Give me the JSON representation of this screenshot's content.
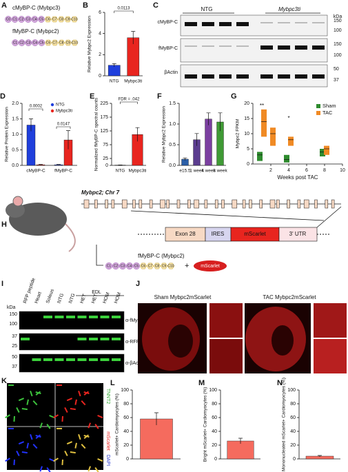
{
  "panel_a": {
    "panel": "A",
    "rows": [
      {
        "label": "cMyBP-C (Mybpc3)",
        "domains": [
          "C0",
          "C1",
          "C2",
          "C3",
          "C4",
          "C5",
          "C6",
          "C7",
          "C8",
          "C9",
          "C10"
        ]
      },
      {
        "label": "fMyBP-C (Mybpc2)",
        "domains": [
          "C1",
          "C2",
          "C3",
          "C4",
          "C5",
          "C6",
          "C7",
          "C8",
          "C9",
          "C10"
        ]
      }
    ]
  },
  "panel_c": {
    "panel": "C",
    "groups": [
      "NTG",
      "Mybpc3ti"
    ],
    "unit": "kDa",
    "markers": [
      "150",
      "100",
      "150",
      "100",
      "50",
      "37"
    ],
    "proteins": [
      "cMyBP-C",
      "fMyBP-C",
      "βActin"
    ]
  },
  "panel_h": {
    "panel": "H",
    "gene": "Mybpc2; Chr 7",
    "construct": [
      "Exon 28",
      "IRES",
      "mScarlet",
      "3' UTR"
    ],
    "product": {
      "label": "fMyBP-C (Mybpc2)",
      "domains": [
        "C1",
        "C2",
        "C3",
        "C4",
        "C5",
        "C6",
        "C7",
        "C8",
        "C9",
        "C10"
      ]
    },
    "plus": "+",
    "reporter": "mScarlet"
  },
  "panel_i": {
    "panel": "I",
    "lanes": [
      "RFP peptide",
      "Heart",
      "Soleus",
      "NTG",
      "NTG",
      "HET",
      "HET",
      "HOM",
      "HOM"
    ],
    "group": "EDL",
    "unit": "kDa",
    "markers": [
      "150",
      "100",
      "37",
      "25",
      "50",
      "37"
    ],
    "antibodies": [
      "α-fMyBP-C",
      "α-RFP",
      "α-βActin"
    ]
  },
  "panel_j": {
    "panel": "J",
    "titles": [
      "Sham Mybpc2mScarlet",
      "TAC Mybpc2mScarlet"
    ]
  },
  "panel_k": {
    "panel": "K",
    "channels": [
      "TNNT2",
      "mScarlet",
      "DAPI"
    ]
  },
  "chart_data": [
    {
      "panel": "B",
      "type": "bar",
      "ylabel": "Relative Mybpc2 Expression",
      "categories": [
        "NTG",
        "Mybpc3ti"
      ],
      "values": [
        1.0,
        3.6
      ],
      "errors": [
        0.15,
        0.6
      ],
      "colors": [
        "#1f3fdc",
        "#e8251f"
      ],
      "ylim": [
        0,
        6
      ],
      "yticks": [
        0,
        2,
        4,
        6
      ],
      "annotations": [
        "0.0113"
      ]
    },
    {
      "panel": "D",
      "type": "bar",
      "ylabel": "Relative Protein Expression",
      "categories": [
        "cMyBP-C",
        "fMyBP-C"
      ],
      "series": [
        {
          "name": "NTG",
          "color": "#1f3fdc",
          "values": [
            1.3,
            0.02
          ],
          "errors": [
            0.2,
            0.01
          ]
        },
        {
          "name": "Mybpc3ti",
          "color": "#e8251f",
          "values": [
            0.02,
            0.82
          ],
          "errors": [
            0.01,
            0.3
          ]
        }
      ],
      "ylim": [
        0,
        2
      ],
      "yticks": [
        {
          "value": 0,
          "label": "0.0"
        },
        {
          "value": 0.5,
          "label": "0.5"
        },
        {
          "value": 1,
          "label": "1.0"
        },
        {
          "value": 1.5,
          "label": "1.5"
        },
        {
          "value": 2,
          "label": "2.0"
        }
      ],
      "annotations": [
        "0.0002",
        "0.0147"
      ]
    },
    {
      "panel": "E",
      "type": "bar",
      "ylabel": "Normalized fMyBP-C spectral counts",
      "categories": [
        "NTG",
        "Mybpc3ti"
      ],
      "values": [
        1,
        112
      ],
      "errors": [
        0.5,
        25
      ],
      "colors": [
        "#1f3fdc",
        "#e8251f"
      ],
      "ylim": [
        0,
        225
      ],
      "yticks": [
        0,
        25,
        75,
        125,
        175,
        225
      ],
      "annotations": [
        "FDR = .042"
      ]
    },
    {
      "panel": "F",
      "type": "bar",
      "ylabel": "Relative Mybpc2 Expression",
      "categories": [
        "e15.5",
        "1 week",
        "4 week",
        "8 week"
      ],
      "values": [
        0.15,
        0.62,
        1.12,
        1.05
      ],
      "errors": [
        0.03,
        0.15,
        0.15,
        0.22
      ],
      "colors": [
        "#2b5fa8",
        "#5b3d8f",
        "#7b3fa0",
        "#3f9a35"
      ],
      "ylim": [
        0,
        1.5
      ],
      "yticks": [
        {
          "value": 0,
          "label": "0.0"
        },
        {
          "value": 0.5,
          "label": "0.5"
        },
        {
          "value": 1,
          "label": "1.0"
        },
        {
          "value": 1.5,
          "label": "1.5"
        }
      ]
    },
    {
      "panel": "G",
      "type": "box",
      "ylabel": "Mybpc2 FPKM",
      "xlabel": "Weeks post TAC",
      "series": [
        {
          "name": "Sham",
          "color": "#2e8b2e",
          "x": [
            1,
            4,
            8
          ],
          "q1": [
            1,
            0.5,
            2.5
          ],
          "median": [
            3,
            1.5,
            4
          ],
          "q3": [
            4,
            3,
            5
          ]
        },
        {
          "name": "TAC",
          "color": "#f08a24",
          "x": [
            1,
            2,
            4,
            8
          ],
          "q1": [
            9,
            6,
            6,
            3
          ],
          "median": [
            14,
            10,
            8,
            5
          ],
          "q3": [
            18,
            12,
            9,
            6
          ]
        }
      ],
      "xlim": [
        0,
        10
      ],
      "xticks": [
        2,
        4,
        6,
        8,
        10
      ],
      "ylim": [
        0,
        20
      ],
      "yticks": [
        0,
        5,
        10,
        15,
        20
      ],
      "legend": "upper right",
      "annotations": [
        {
          "text": "**",
          "x": 1
        },
        {
          "text": "*",
          "x": 4
        }
      ]
    },
    {
      "panel": "L",
      "type": "bar",
      "ylabel": "mScarlet+ Cardiomyocytes (%)",
      "categories": [
        null
      ],
      "values": [
        58
      ],
      "errors": [
        9
      ],
      "colors": [
        "#f56b5e"
      ],
      "ylim": [
        0,
        100
      ],
      "yticks": [
        0,
        20,
        40,
        60,
        80,
        100
      ]
    },
    {
      "panel": "M",
      "type": "bar",
      "ylabel": "Bright mScarlet+ Cardiomyocytes (%)",
      "categories": [
        null
      ],
      "values": [
        26
      ],
      "errors": [
        4
      ],
      "colors": [
        "#f56b5e"
      ],
      "ylim": [
        0,
        100
      ],
      "yticks": [
        0,
        20,
        40,
        60,
        80,
        100
      ]
    },
    {
      "panel": "N",
      "type": "bar",
      "ylabel": "Mononucleated mScarlet+ Cardiomyocytes (%)",
      "categories": [
        null
      ],
      "values": [
        4
      ],
      "errors": [
        1
      ],
      "colors": [
        "#f56b5e"
      ],
      "ylim": [
        0,
        100
      ],
      "yticks": [
        0,
        20,
        40,
        60,
        80,
        100
      ]
    }
  ]
}
